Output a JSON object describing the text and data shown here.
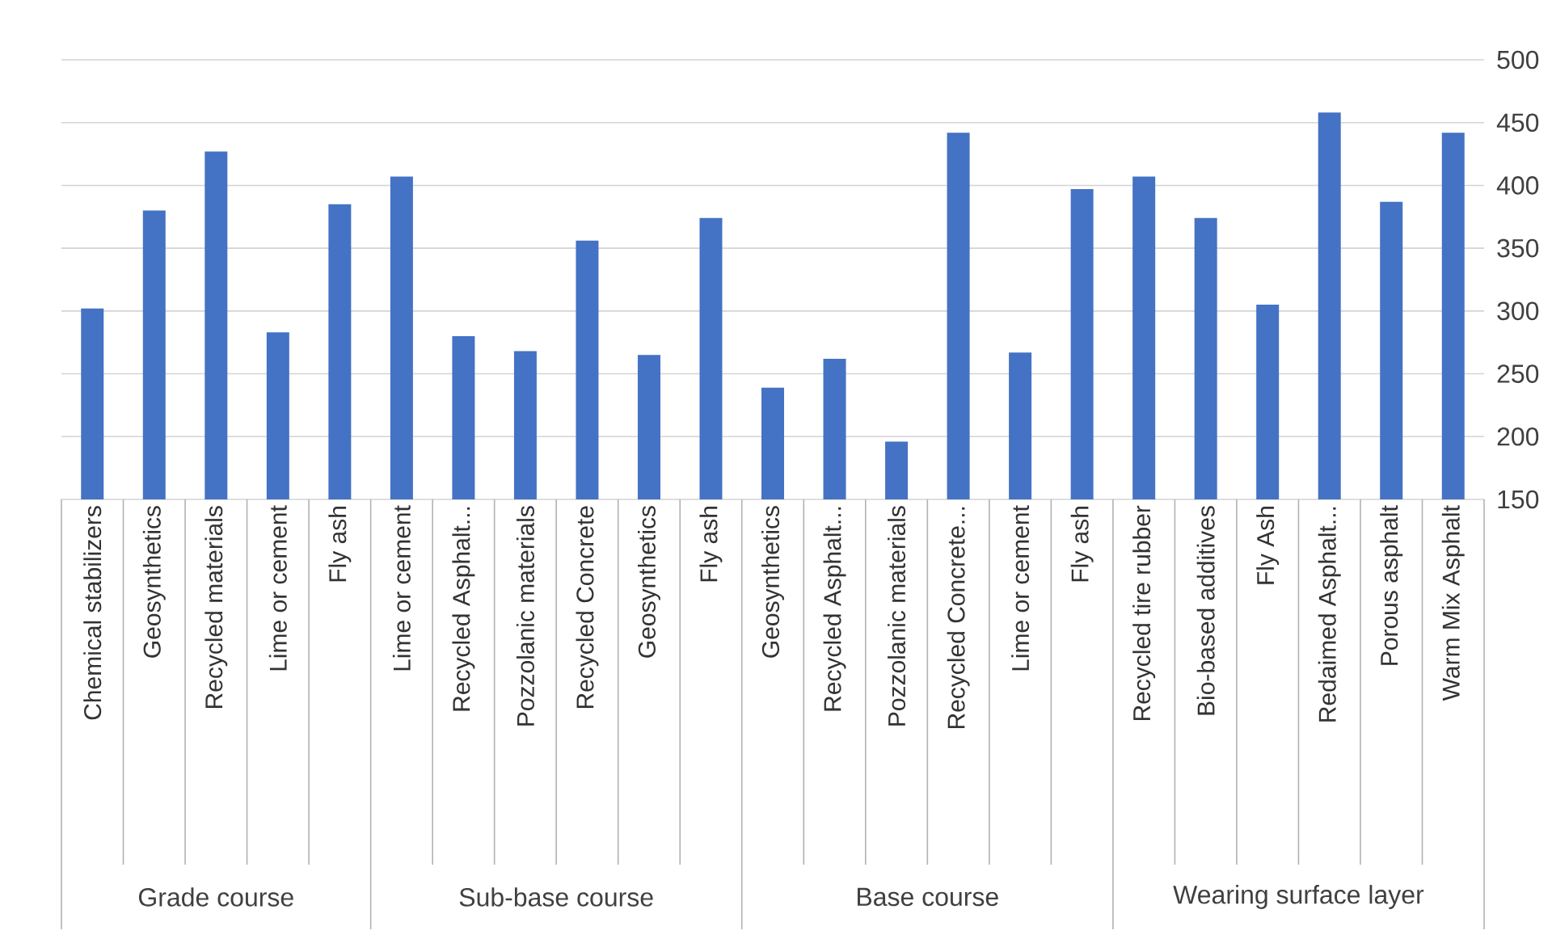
{
  "chart_data": {
    "type": "bar",
    "categories": [
      "Chemical stabilizers",
      "Geosynthetics",
      "Recycled materials",
      "Lime or cement",
      "Fly ash",
      "Lime or cement",
      "Recycled Asphalt...",
      "Pozzolanic materials",
      "Recycled Concrete",
      "Geosynthetics",
      "Fly ash",
      "Geosynthetics",
      "Recycled Asphalt...",
      "Pozzolanic materials",
      "Recycled Concrete...",
      "Lime or cement",
      "Fly ash",
      "Recycled tire rubber",
      "Bio-based additives",
      "Fly Ash",
      "Redaimed Asphalt...",
      "Porous asphalt",
      "Warm Mix Asphalt"
    ],
    "values": [
      302,
      380,
      427,
      283,
      385,
      407,
      280,
      268,
      356,
      265,
      374,
      239,
      262,
      196,
      442,
      267,
      397,
      407,
      374,
      305,
      458,
      387,
      442
    ],
    "color": "#4472c4",
    "ylim": [
      150,
      500
    ],
    "yticks": [
      150,
      200,
      250,
      300,
      350,
      400,
      450,
      500
    ],
    "grid": "y",
    "annotations": [
      "Grade course",
      "Sub-base course",
      "Base course",
      "Wearing surface layer"
    ]
  }
}
